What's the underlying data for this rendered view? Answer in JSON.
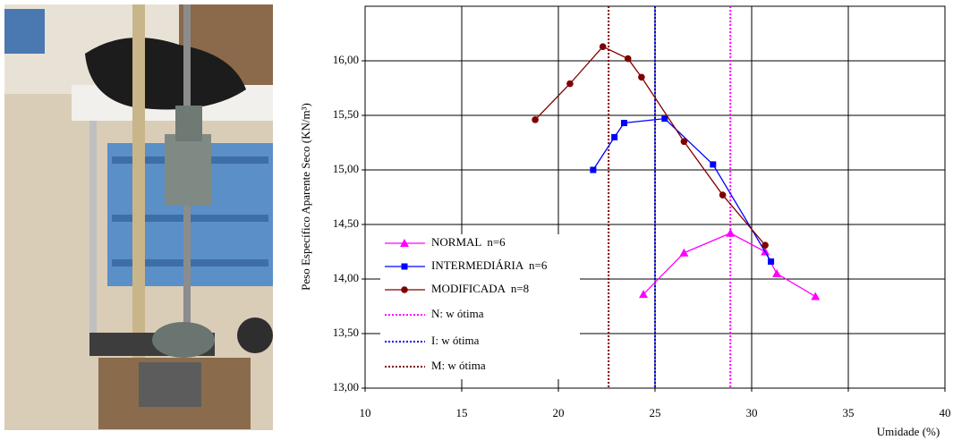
{
  "chart_data": {
    "type": "line",
    "ylabel": "Peso Específico Aparente Seco (KN/m³)",
    "xlabel": "Umidade (%)",
    "xlim": [
      10,
      40
    ],
    "xticks": [
      10,
      15,
      20,
      25,
      30,
      35,
      40
    ],
    "ylim": [
      13,
      16.5
    ],
    "yticks": [
      {
        "value": 13,
        "label": "13,00"
      },
      {
        "value": 13.5,
        "label": "13,50"
      },
      {
        "value": 14,
        "label": "14,00"
      },
      {
        "value": 14.5,
        "label": "14,50"
      },
      {
        "value": 15,
        "label": "15,00"
      },
      {
        "value": 15.5,
        "label": "15,50"
      },
      {
        "value": 16,
        "label": "16,00"
      }
    ],
    "grid": true,
    "legend": "lower left",
    "series": [
      {
        "name": "NORMAL  n=6",
        "color": "#ff00ff",
        "marker": "triangle",
        "x": [
          24.4,
          26.5,
          28.9,
          30.7,
          31.3,
          33.3
        ],
        "values": [
          13.86,
          14.24,
          14.42,
          14.25,
          14.05,
          13.84
        ]
      },
      {
        "name": "INTERMEDIÁRIA  n=6",
        "color": "#0000ff",
        "marker": "square",
        "x": [
          21.8,
          22.9,
          23.4,
          25.5,
          28.0,
          31.0
        ],
        "values": [
          15.0,
          15.3,
          15.43,
          15.47,
          15.05,
          14.16
        ]
      },
      {
        "name": "MODIFICADA  n=8",
        "color": "#800000",
        "marker": "circle",
        "x": [
          18.8,
          20.6,
          22.3,
          23.6,
          24.3,
          26.5,
          28.5,
          30.7
        ],
        "values": [
          15.46,
          15.79,
          16.13,
          16.02,
          15.85,
          15.26,
          14.77,
          14.31
        ]
      }
    ],
    "reference_lines": [
      {
        "name": "N: w ótima",
        "color": "#ff00ff",
        "x": 28.9
      },
      {
        "name": "I: w ótima",
        "color": "#0000ff",
        "x": 25.0
      },
      {
        "name": "M: w ótima",
        "color": "#800000",
        "x": 22.6
      }
    ]
  }
}
